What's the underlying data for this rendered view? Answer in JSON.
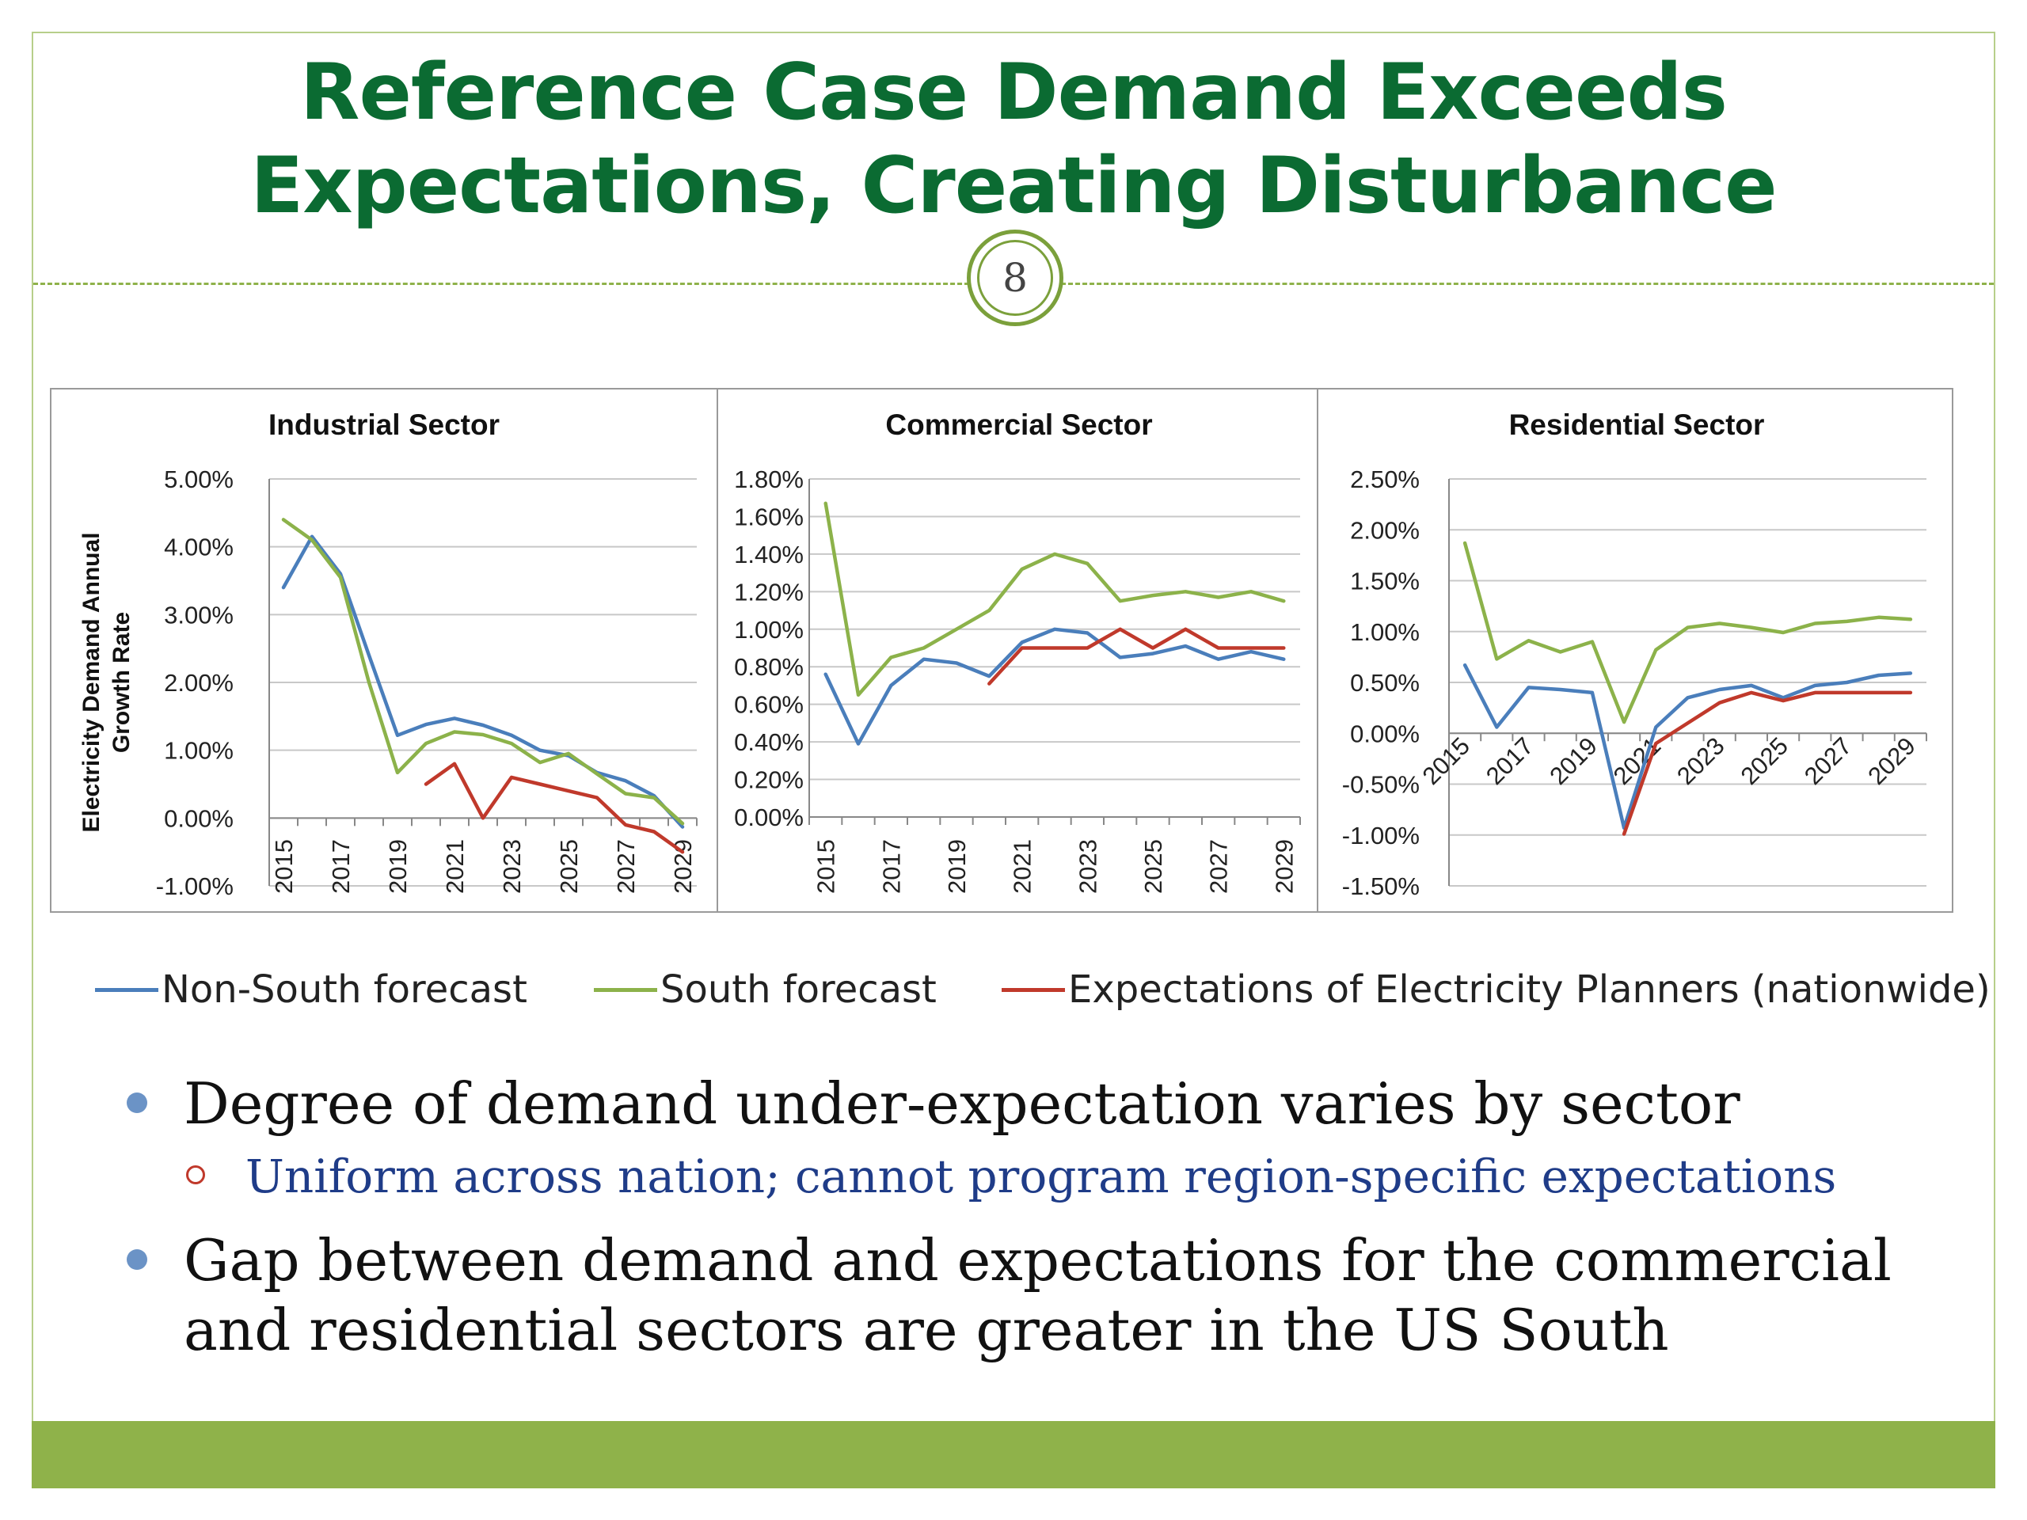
{
  "slide": {
    "title_line1": "Reference Case Demand Exceeds",
    "title_line2": "Expectations, Creating Disturbance",
    "page_number": "8"
  },
  "colors": {
    "title": "#0b6b32",
    "accent": "#8fb24a",
    "non_south": "#4a7ebb",
    "south": "#8cb24a",
    "planners": "#c0392b"
  },
  "legend": [
    {
      "label": "Non-South forecast",
      "color": "#4a7ebb"
    },
    {
      "label": "South forecast",
      "color": "#8cb24a"
    },
    {
      "label": "Expectations of Electricity Planners (nationwide)",
      "color": "#c0392b"
    }
  ],
  "bullets": [
    {
      "text": "Degree of demand under-expectation varies by sector",
      "sub": [
        "Uniform across nation; cannot program region-specific expectations"
      ]
    },
    {
      "text": "Gap between demand and expectations for the commercial and residential sectors are greater in the US South",
      "sub": []
    }
  ],
  "chart_data": [
    {
      "type": "line",
      "title": "Industrial Sector",
      "ylabel": "Electricity Demand Annual Growth Rate",
      "xlabel": "",
      "ylim": [
        -1.0,
        5.0
      ],
      "y_ticks": [
        -1.0,
        0.0,
        1.0,
        2.0,
        3.0,
        4.0,
        5.0
      ],
      "y_tick_labels": [
        "-1.00%",
        "0.00%",
        "1.00%",
        "2.00%",
        "3.00%",
        "4.00%",
        "5.00%"
      ],
      "y_decimals": 2,
      "x": [
        2015,
        2016,
        2017,
        2018,
        2019,
        2020,
        2021,
        2022,
        2023,
        2024,
        2025,
        2026,
        2027,
        2028,
        2029
      ],
      "x_tick_labels": [
        "2015",
        "2017",
        "2019",
        "2021",
        "2023",
        "2025",
        "2027",
        "2029"
      ],
      "x_label_position": "bottom",
      "series": [
        {
          "name": "Non-South forecast",
          "color": "#4a7ebb",
          "x": [
            2015,
            2016,
            2017,
            2018,
            2019,
            2020,
            2021,
            2022,
            2023,
            2024,
            2025,
            2026,
            2027,
            2028,
            2029
          ],
          "values": [
            3.4,
            4.15,
            3.6,
            2.4,
            1.22,
            1.38,
            1.47,
            1.37,
            1.22,
            1.0,
            0.92,
            0.67,
            0.55,
            0.33,
            -0.13
          ]
        },
        {
          "name": "South forecast",
          "color": "#8cb24a",
          "x": [
            2015,
            2016,
            2017,
            2018,
            2019,
            2020,
            2021,
            2022,
            2023,
            2024,
            2025,
            2026,
            2027,
            2028,
            2029
          ],
          "values": [
            4.4,
            4.1,
            3.55,
            2.0,
            0.67,
            1.1,
            1.27,
            1.23,
            1.1,
            0.82,
            0.95,
            0.65,
            0.36,
            0.3,
            -0.08
          ]
        },
        {
          "name": "Expectations of Electricity Planners (nationwide)",
          "color": "#c0392b",
          "x": [
            2020,
            2021,
            2022,
            2023,
            2024,
            2025,
            2026,
            2027,
            2028,
            2029
          ],
          "values": [
            0.5,
            0.8,
            0.0,
            0.6,
            0.5,
            0.4,
            0.3,
            -0.1,
            -0.2,
            -0.5
          ]
        }
      ]
    },
    {
      "type": "line",
      "title": "Commercial Sector",
      "ylabel": "",
      "xlabel": "",
      "ylim": [
        0.0,
        1.8
      ],
      "y_ticks": [
        0.0,
        0.2,
        0.4,
        0.6,
        0.8,
        1.0,
        1.2,
        1.4,
        1.6,
        1.8
      ],
      "y_tick_labels": [
        "0.00%",
        "0.20%",
        "0.40%",
        "0.60%",
        "0.80%",
        "1.00%",
        "1.20%",
        "1.40%",
        "1.60%",
        "1.80%"
      ],
      "y_decimals": 2,
      "x": [
        2015,
        2016,
        2017,
        2018,
        2019,
        2020,
        2021,
        2022,
        2023,
        2024,
        2025,
        2026,
        2027,
        2028,
        2029
      ],
      "x_tick_labels": [
        "2015",
        "2017",
        "2019",
        "2021",
        "2023",
        "2025",
        "2027",
        "2029"
      ],
      "x_label_position": "bottom",
      "series": [
        {
          "name": "Non-South forecast",
          "color": "#4a7ebb",
          "x": [
            2015,
            2016,
            2017,
            2018,
            2019,
            2020,
            2021,
            2022,
            2023,
            2024,
            2025,
            2026,
            2027,
            2028,
            2029
          ],
          "values": [
            0.76,
            0.39,
            0.7,
            0.84,
            0.82,
            0.75,
            0.93,
            1.0,
            0.98,
            0.85,
            0.87,
            0.91,
            0.84,
            0.88,
            0.84
          ]
        },
        {
          "name": "South forecast",
          "color": "#8cb24a",
          "x": [
            2015,
            2016,
            2017,
            2018,
            2019,
            2020,
            2021,
            2022,
            2023,
            2024,
            2025,
            2026,
            2027,
            2028,
            2029
          ],
          "values": [
            1.67,
            0.65,
            0.85,
            0.9,
            1.0,
            1.1,
            1.32,
            1.4,
            1.35,
            1.15,
            1.18,
            1.2,
            1.17,
            1.2,
            1.15
          ]
        },
        {
          "name": "Expectations of Electricity Planners (nationwide)",
          "color": "#c0392b",
          "x": [
            2020,
            2021,
            2022,
            2023,
            2024,
            2025,
            2026,
            2027,
            2028,
            2029
          ],
          "values": [
            0.71,
            0.9,
            0.9,
            0.9,
            1.0,
            0.9,
            1.0,
            0.9,
            0.9,
            0.9
          ]
        }
      ]
    },
    {
      "type": "line",
      "title": "Residential Sector",
      "ylabel": "",
      "xlabel": "",
      "ylim": [
        -1.5,
        2.5
      ],
      "y_ticks": [
        -1.5,
        -1.0,
        -0.5,
        0.0,
        0.5,
        1.0,
        1.5,
        2.0,
        2.5
      ],
      "y_tick_labels": [
        "-1.50%",
        "-1.00%",
        "-0.50%",
        "0.00%",
        "0.50%",
        "1.00%",
        "1.50%",
        "2.00%",
        "2.50%"
      ],
      "y_decimals": 2,
      "x": [
        2015,
        2016,
        2017,
        2018,
        2019,
        2020,
        2021,
        2022,
        2023,
        2024,
        2025,
        2026,
        2027,
        2028,
        2029
      ],
      "x_tick_labels": [
        "2015",
        "2017",
        "2019",
        "2021",
        "2023",
        "2025",
        "2027",
        "2029"
      ],
      "x_label_position": "axis",
      "series": [
        {
          "name": "Non-South forecast",
          "color": "#4a7ebb",
          "x": [
            2015,
            2016,
            2017,
            2018,
            2019,
            2020,
            2021,
            2022,
            2023,
            2024,
            2025,
            2026,
            2027,
            2028,
            2029
          ],
          "values": [
            0.67,
            0.06,
            0.45,
            0.43,
            0.4,
            -0.93,
            0.06,
            0.35,
            0.43,
            0.47,
            0.35,
            0.47,
            0.5,
            0.57,
            0.59
          ]
        },
        {
          "name": "South forecast",
          "color": "#8cb24a",
          "x": [
            2015,
            2016,
            2017,
            2018,
            2019,
            2020,
            2021,
            2022,
            2023,
            2024,
            2025,
            2026,
            2027,
            2028,
            2029
          ],
          "values": [
            1.87,
            0.73,
            0.91,
            0.8,
            0.9,
            0.11,
            0.82,
            1.04,
            1.08,
            1.04,
            0.99,
            1.08,
            1.1,
            1.14,
            1.12
          ]
        },
        {
          "name": "Expectations of Electricity Planners (nationwide)",
          "color": "#c0392b",
          "x": [
            2020,
            2021,
            2022,
            2023,
            2024,
            2025,
            2026,
            2027,
            2028,
            2029
          ],
          "values": [
            -0.99,
            -0.1,
            0.1,
            0.3,
            0.4,
            0.32,
            0.4,
            0.4,
            0.4,
            0.4
          ]
        }
      ]
    }
  ]
}
